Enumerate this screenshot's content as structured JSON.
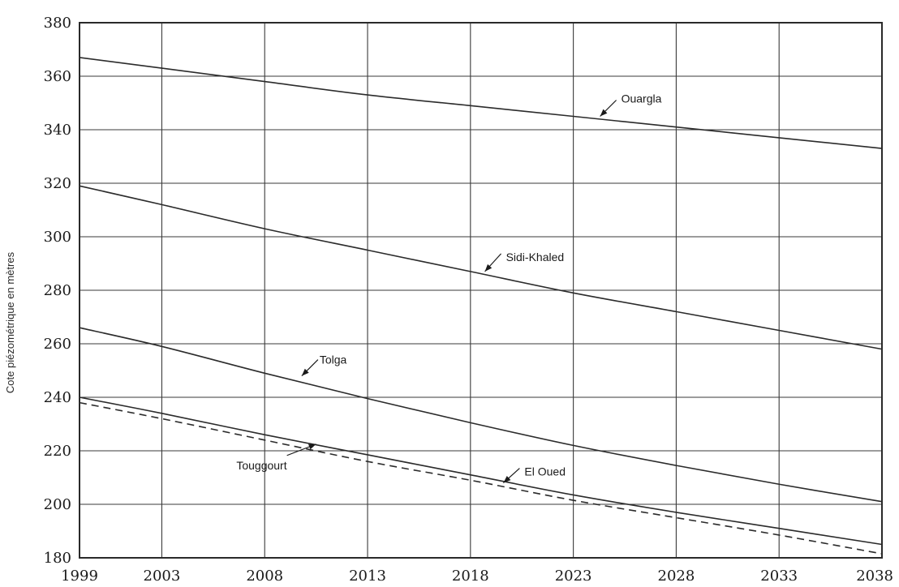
{
  "chart_data": {
    "type": "line",
    "title": "",
    "xlabel": "",
    "ylabel": "Cote piézométrique en mètres",
    "xlim": [
      1999,
      2038
    ],
    "ylim": [
      180,
      380
    ],
    "x_ticks": [
      1999,
      2003,
      2008,
      2013,
      2018,
      2023,
      2028,
      2033,
      2038
    ],
    "y_ticks": [
      180,
      200,
      220,
      240,
      260,
      280,
      300,
      320,
      340,
      360,
      380
    ],
    "grid": true,
    "legend": "none",
    "x": [
      1999,
      2003,
      2008,
      2013,
      2018,
      2023,
      2028,
      2033,
      2038
    ],
    "series": [
      {
        "name": "Ouargla",
        "style": "solid",
        "values": [
          367,
          363,
          358,
          353,
          349,
          345,
          341,
          337,
          333
        ]
      },
      {
        "name": "Sidi-Khaled",
        "style": "solid",
        "values": [
          319,
          312,
          303,
          295,
          287,
          279,
          272,
          265,
          258
        ]
      },
      {
        "name": "Tolga",
        "style": "solid",
        "values": [
          266,
          259,
          249,
          239.5,
          230.5,
          222,
          214.5,
          207.5,
          201
        ]
      },
      {
        "name": "Touggourt",
        "style": "solid",
        "values": [
          240,
          234,
          226,
          218.5,
          211,
          203.5,
          197,
          191,
          185
        ]
      },
      {
        "name": "El Oued",
        "style": "dashed",
        "values": [
          238,
          232,
          224,
          216,
          209,
          201.5,
          195,
          188.5,
          181.5
        ]
      }
    ],
    "annotations": [
      {
        "text": "Ouargla",
        "series": "Ouargla",
        "x": 2024.3,
        "y": 345
      },
      {
        "text": "Sidi-Khaled",
        "series": "Sidi-Khaled",
        "x": 2018.7,
        "y": 287
      },
      {
        "text": "Tolga",
        "series": "Tolga",
        "x": 2009.8,
        "y": 248
      },
      {
        "text": "Touggourt",
        "series": "Touggourt",
        "x": 2010.5,
        "y": 222.5
      },
      {
        "text": "El Oued",
        "series": "El Oued",
        "x": 2019.6,
        "y": 208
      }
    ]
  }
}
